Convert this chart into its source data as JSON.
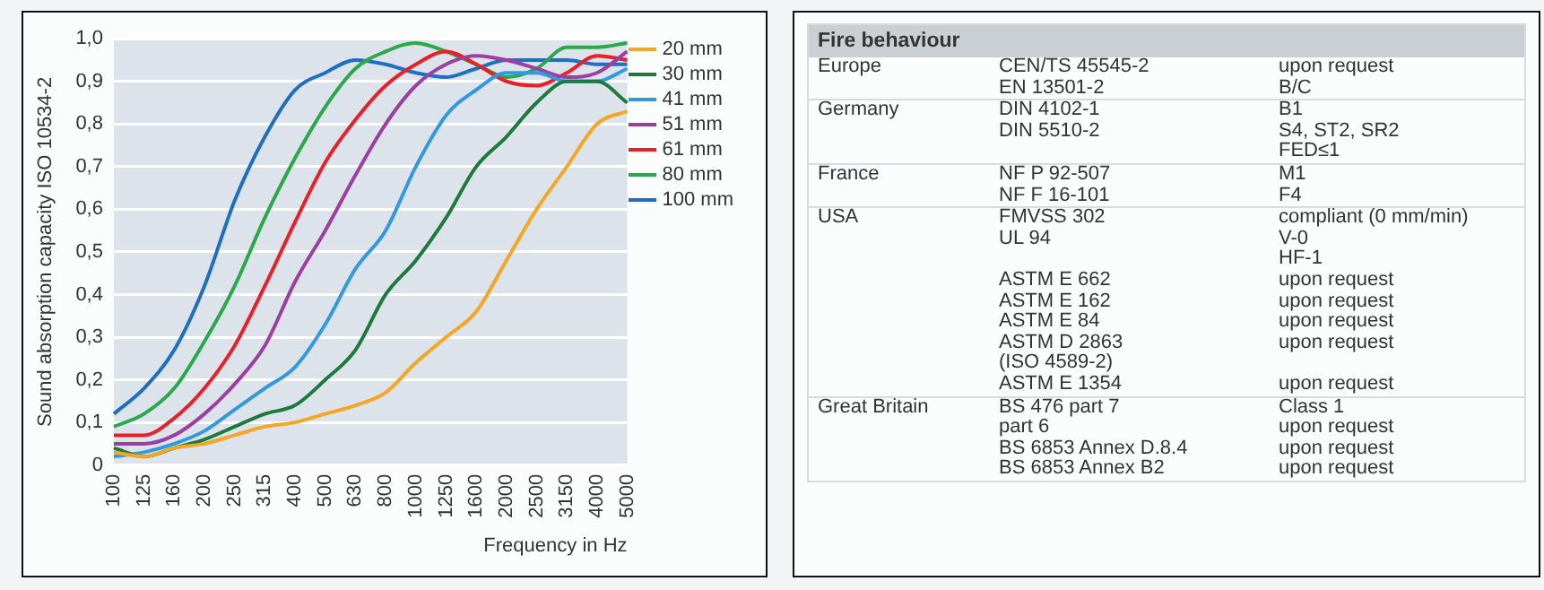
{
  "chart_data": [
    {
      "type": "line",
      "xlabel": "Frequency in Hz",
      "ylabel": "Sound absorption capacity ISO 10534-2",
      "categories": [
        "100",
        "125",
        "160",
        "200",
        "250",
        "315",
        "400",
        "500",
        "630",
        "800",
        "1000",
        "1250",
        "1600",
        "2000",
        "2500",
        "3150",
        "4000",
        "5000"
      ],
      "ylim": [
        0,
        1
      ],
      "yticks": [
        0,
        {
          "value": 0.1,
          "label": "0,1"
        },
        {
          "value": 0.2,
          "label": "0,2"
        },
        {
          "value": 0.3,
          "label": "0,3"
        },
        {
          "value": 0.4,
          "label": "0,4"
        },
        {
          "value": 0.5,
          "label": "0,5"
        },
        {
          "value": 0.6,
          "label": "0,6"
        },
        {
          "value": 0.7,
          "label": "0,7"
        },
        {
          "value": 0.8,
          "label": "0,8"
        },
        {
          "value": 0.9,
          "label": "0,9"
        },
        {
          "value": 1,
          "label": "1,0"
        }
      ],
      "grid": "y",
      "legend": "right",
      "marker": "none",
      "line_style": "solid",
      "series": [
        {
          "name": "20 mm",
          "color": "#f5a623",
          "values": [
            0.03,
            0.02,
            0.04,
            0.05,
            0.07,
            0.09,
            0.1,
            0.12,
            0.14,
            0.17,
            0.24,
            0.3,
            0.36,
            0.48,
            0.6,
            0.7,
            0.8,
            0.83
          ]
        },
        {
          "name": "30 mm",
          "color": "#1e7a3c",
          "values": [
            0.04,
            0.02,
            0.04,
            0.06,
            0.09,
            0.12,
            0.14,
            0.2,
            0.27,
            0.4,
            0.48,
            0.58,
            0.7,
            0.77,
            0.85,
            0.9,
            0.9,
            0.85
          ]
        },
        {
          "name": "41 mm",
          "color": "#3399dd",
          "values": [
            0.02,
            0.03,
            0.05,
            0.08,
            0.13,
            0.18,
            0.23,
            0.33,
            0.46,
            0.55,
            0.7,
            0.82,
            0.88,
            0.92,
            0.92,
            0.9,
            0.9,
            0.93
          ]
        },
        {
          "name": "51 mm",
          "color": "#9b3fa0",
          "values": [
            0.05,
            0.05,
            0.07,
            0.12,
            0.19,
            0.28,
            0.43,
            0.55,
            0.68,
            0.8,
            0.89,
            0.94,
            0.96,
            0.95,
            0.93,
            0.91,
            0.92,
            0.97
          ]
        },
        {
          "name": "61 mm",
          "color": "#e8202a",
          "values": [
            0.07,
            0.07,
            0.11,
            0.18,
            0.28,
            0.42,
            0.57,
            0.71,
            0.81,
            0.89,
            0.94,
            0.97,
            0.94,
            0.9,
            0.89,
            0.92,
            0.96,
            0.95
          ]
        },
        {
          "name": "80 mm",
          "color": "#2aa84a",
          "values": [
            0.09,
            0.12,
            0.18,
            0.29,
            0.42,
            0.58,
            0.72,
            0.84,
            0.93,
            0.97,
            0.99,
            0.97,
            0.94,
            0.91,
            0.93,
            0.98,
            0.98,
            0.99
          ]
        },
        {
          "name": "100 mm",
          "color": "#1f6fc0",
          "values": [
            0.12,
            0.18,
            0.27,
            0.42,
            0.62,
            0.77,
            0.88,
            0.92,
            0.95,
            0.94,
            0.92,
            0.91,
            0.93,
            0.95,
            0.95,
            0.95,
            0.94,
            0.94
          ]
        }
      ]
    },
    {
      "type": "other",
      "title": "Fire behaviour",
      "annotations": [
        "Europe",
        "CEN/TS 45545-2",
        "upon request",
        null,
        "EN 13501-2",
        "B/C",
        "Germany",
        "DIN 4102-1",
        "B1",
        null,
        "DIN 5510-2",
        "S4, ST2, SR2",
        null,
        null,
        "FED≤1",
        "France",
        "NF P 92-507",
        "M1",
        null,
        "NF F 16-101",
        "F4",
        "USA",
        "FMVSS 302",
        "compliant (0 mm/min)",
        null,
        "UL 94",
        "V-0",
        null,
        null,
        "HF-1",
        null,
        "ASTM E 662",
        "upon request",
        null,
        "ASTM E 162",
        "upon request",
        null,
        "ASTM E 84",
        "upon request",
        null,
        "ASTM D 2863",
        "upon request",
        null,
        "(ISO 4589-2)",
        null,
        null,
        "ASTM E 1354",
        "upon request",
        "Great Britain",
        "BS 476 part 7",
        "Class 1",
        null,
        "part 6",
        "upon request",
        null,
        "BS 6853 Annex D.8.4",
        "upon request",
        null,
        "BS 6853 Annex B2",
        "upon request"
      ]
    }
  ]
}
